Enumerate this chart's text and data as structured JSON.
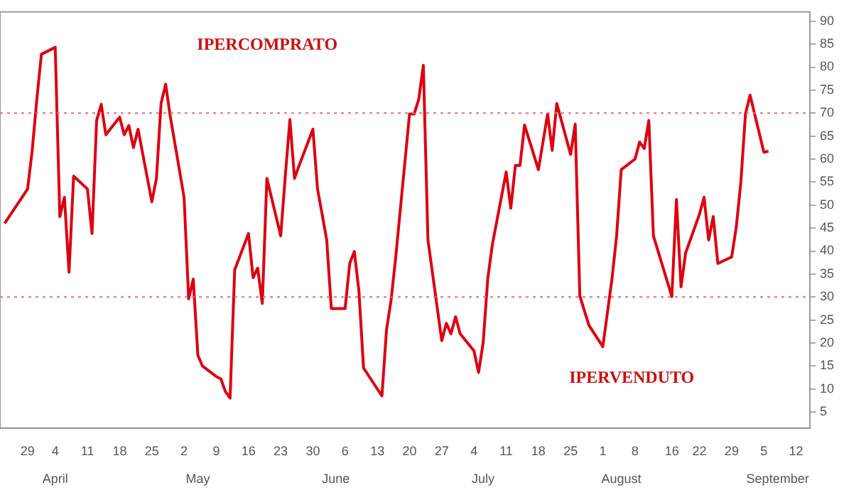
{
  "chart_data": {
    "type": "line",
    "x": [
      "--03-24",
      "--03-29",
      "--03-30",
      "--03-31",
      "--04-01",
      "--04-04",
      "--04-05",
      "--04-06",
      "--04-07",
      "--04-08",
      "--04-11",
      "--04-12",
      "--04-13",
      "--04-14",
      "--04-15",
      "--04-18",
      "--04-19",
      "--04-20",
      "--04-21",
      "--04-22",
      "--04-25",
      "--04-26",
      "--04-27",
      "--04-28",
      "--04-29",
      "--05-02",
      "--05-03",
      "--05-04",
      "--05-05",
      "--05-06",
      "--05-09",
      "--05-10",
      "--05-11",
      "--05-12",
      "--05-13",
      "--05-16",
      "--05-17",
      "--05-18",
      "--05-19",
      "--05-20",
      "--05-23",
      "--05-24",
      "--05-25",
      "--05-26",
      "--05-27",
      "--05-30",
      "--05-31",
      "--06-01",
      "--06-02",
      "--06-03",
      "--06-06",
      "--06-07",
      "--06-08",
      "--06-09",
      "--06-10",
      "--06-13",
      "--06-14",
      "--06-15",
      "--06-16",
      "--06-17",
      "--06-20",
      "--06-21",
      "--06-22",
      "--06-23",
      "--06-24",
      "--06-27",
      "--06-28",
      "--06-29",
      "--06-30",
      "--07-01",
      "--07-04",
      "--07-05",
      "--07-06",
      "--07-07",
      "--07-08",
      "--07-11",
      "--07-12",
      "--07-13",
      "--07-14",
      "--07-15",
      "--07-18",
      "--07-19",
      "--07-20",
      "--07-21",
      "--07-22",
      "--07-25",
      "--07-26",
      "--07-27",
      "--07-28",
      "--07-29",
      "--08-01",
      "--08-02",
      "--08-03",
      "--08-04",
      "--08-05",
      "--08-08",
      "--08-09",
      "--08-10",
      "--08-11",
      "--08-12",
      "--08-16",
      "--08-17",
      "--08-18",
      "--08-19",
      "--08-22",
      "--08-23",
      "--08-24",
      "--08-25",
      "--08-26",
      "--08-29",
      "--08-30",
      "--08-31",
      "--09-01",
      "--09-02",
      "--09-05",
      "--09-06"
    ],
    "series": [
      {
        "color": "#dd0010",
        "values": [
          46,
          53.5,
          61.9,
          73,
          82.8,
          84.3,
          47.5,
          51.7,
          35.4,
          56.3,
          53.5,
          43.8,
          68.4,
          71.9,
          65.3,
          69.1,
          65.3,
          67.3,
          62.5,
          66.5,
          50.7,
          55.8,
          72.1,
          76.3,
          69.3,
          51.7,
          29.6,
          33.9,
          17.3,
          15,
          12.7,
          12.2,
          9.4,
          8,
          35.9,
          43.8,
          34.2,
          36.3,
          28.6,
          55.8,
          43.3,
          56.3,
          68.6,
          55.8,
          58.6,
          66.5,
          53.5,
          48,
          42.4,
          27.5,
          27.5,
          37.3,
          39.9,
          31.3,
          14.6,
          10,
          8.5,
          22.9,
          29.4,
          38.7,
          69.8,
          69.8,
          73,
          80.4,
          42.4,
          20.5,
          24.3,
          22,
          25.7,
          22,
          18.3,
          13.6,
          20.1,
          34,
          41.4,
          57.2,
          49.3,
          58.6,
          58.6,
          67.4,
          57.7,
          63.7,
          69.8,
          61.9,
          72.1,
          61,
          67.6,
          30.3,
          27,
          23.8,
          19.2,
          26.6,
          34,
          43.3,
          57.7,
          60,
          63.7,
          62.3,
          68.4,
          43.3,
          30.1,
          51.2,
          32.2,
          39.6,
          48,
          51.7,
          42.4,
          47.5,
          37.3,
          38.7,
          45.2,
          55,
          69.8,
          73.9,
          61.5,
          61.7
        ]
      }
    ],
    "xlim": [
      "--03-23",
      "--09-15"
    ],
    "xticks": [
      {
        "value": "--03-29",
        "label": "29"
      },
      {
        "value": "--04-04",
        "label": "4"
      },
      {
        "value": "--04-11",
        "label": "11"
      },
      {
        "value": "--04-18",
        "label": "18"
      },
      {
        "value": "--04-25",
        "label": "25"
      },
      {
        "value": "--05-02",
        "label": "2"
      },
      {
        "value": "--05-09",
        "label": "9"
      },
      {
        "value": "--05-16",
        "label": "16"
      },
      {
        "value": "--05-23",
        "label": "23"
      },
      {
        "value": "--05-30",
        "label": "30"
      },
      {
        "value": "--06-06",
        "label": "6"
      },
      {
        "value": "--06-13",
        "label": "13"
      },
      {
        "value": "--06-20",
        "label": "20"
      },
      {
        "value": "--06-27",
        "label": "27"
      },
      {
        "value": "--07-04",
        "label": "4"
      },
      {
        "value": "--07-11",
        "label": "11"
      },
      {
        "value": "--07-18",
        "label": "18"
      },
      {
        "value": "--07-25",
        "label": "25"
      },
      {
        "value": "--08-01",
        "label": "1"
      },
      {
        "value": "--08-08",
        "label": "8"
      },
      {
        "value": "--08-16",
        "label": "16"
      },
      {
        "value": "--08-22",
        "label": "22"
      },
      {
        "value": "--08-29",
        "label": "29"
      },
      {
        "value": "--09-05",
        "label": "5"
      },
      {
        "value": "--09-12",
        "label": "12"
      }
    ],
    "ylim": [
      1.5,
      92
    ],
    "yticks": [
      5,
      10,
      15,
      20,
      25,
      30,
      35,
      40,
      45,
      50,
      55,
      60,
      65,
      70,
      75,
      80,
      85,
      90
    ],
    "ref_lines": [
      {
        "axis": "y",
        "value": 70,
        "color": "#e07070",
        "line_style": "dotted"
      },
      {
        "axis": "y",
        "value": 30,
        "color": "#e07070",
        "line_style": "dotted"
      }
    ],
    "x2lim": [
      "--03-23",
      "--09-15"
    ],
    "x2ticks": [
      {
        "value": "--04-04",
        "label": "April"
      },
      {
        "value": "--05-05",
        "label": "May"
      },
      {
        "value": "--06-04",
        "label": "June"
      },
      {
        "value": "--07-06",
        "label": "July"
      },
      {
        "value": "--08-05",
        "label": "August"
      },
      {
        "value": "--09-08",
        "label": "September"
      }
    ],
    "annotations": [
      "IPERCOMPRATO",
      "IPERVENDUTO"
    ],
    "grid": false,
    "legend": false,
    "marker": "none",
    "line_style": "solid"
  }
}
